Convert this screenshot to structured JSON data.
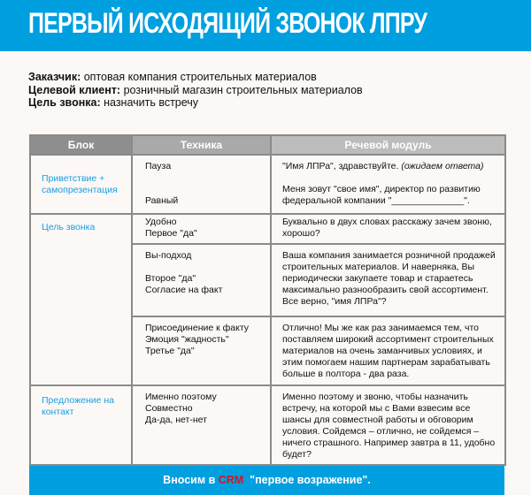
{
  "title": "ПЕРВЫЙ ИСХОДЯЩИЙ ЗВОНОК ЛПРУ",
  "info": [
    {
      "label": "Заказчик:",
      "value": " оптовая компания строительных материалов"
    },
    {
      "label": "Целевой клиент:",
      "value": " розничный магазин строительных материалов"
    },
    {
      "label": "Цель звонка:",
      "value": " назначить встречу"
    }
  ],
  "table": {
    "headers": [
      "Блок",
      "Техника",
      "Речевой модуль"
    ],
    "rows": [
      {
        "block": "Приветствие + самопрезентация",
        "tech": [
          "Пауза",
          "Равный"
        ],
        "speech": [
          "\"Имя ЛПРа\", здравствуйте. ",
          "(ожидаем ответа)",
          "Меня зовут \"свое имя\", директор по развитию федеральной компании \"______________\"."
        ]
      },
      {
        "block": "Цель звонка",
        "tech": [
          "Удобно",
          "Первое \"да\""
        ],
        "speech": "Буквально в двух словах расскажу зачем звоню, хорошо?"
      },
      {
        "tech": [
          "Вы-подход",
          "Второе \"да\"",
          "Согласие на факт"
        ],
        "speech": "Ваша компания занимается розничной продажей строительных материалов. И наверняка, Вы периодически закупаете товар и стараетесь максимально разнообразить свой ассортимент. Все верно, \"имя ЛПРа\"?"
      },
      {
        "tech": [
          "Присоединение к факту",
          "Эмоция \"жадность\"",
          "Третье \"да\""
        ],
        "speech": "Отлично! Мы же как раз занимаемся тем, что поставляем широкий ассортимент строительных материалов на очень заманчивых условиях, и этим помогаем нашим партнерам зарабатывать больше в полтора - два раза."
      },
      {
        "block": "Предложение на контакт",
        "tech": [
          "Именно поэтому",
          "Совместно",
          "Да-да, нет-нет"
        ],
        "speech": "Именно поэтому и звоню, чтобы назначить встречу, на которой мы с Вами взвесим все шансы для совместной работы и обговорим условия. Сойдемся – отлично, не сойдемся – ничего страшного. Например завтра в 11, удобно будет?"
      }
    ]
  },
  "footer": {
    "before": "Вносим в ",
    "crm": "CRM",
    "after": "  \"первое возражение\"."
  },
  "colors": {
    "accent": "#009fe0",
    "crm": "#e3101a",
    "block_text": "#1a9ee0"
  }
}
